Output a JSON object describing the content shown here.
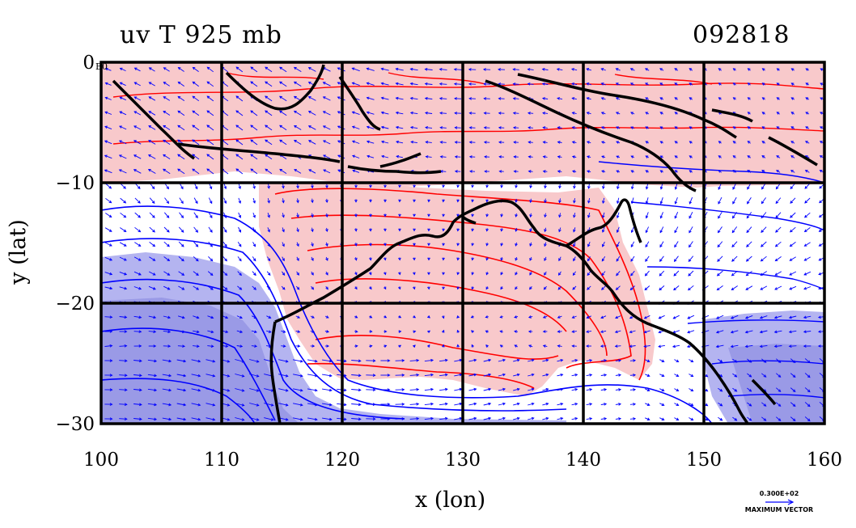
{
  "chart_data": {
    "type": "contour",
    "title": "uv  T  925  mb",
    "date": "092818",
    "xlabel": "x (lon)",
    "ylabel": "y (lat)",
    "xlim": [
      100,
      160
    ],
    "ylim": [
      -30,
      0
    ],
    "xticks": [
      100,
      110,
      120,
      130,
      140,
      150,
      160
    ],
    "yticks": [
      0,
      -10,
      -20,
      -30
    ],
    "xtick_labels": [
      "100",
      "110",
      "120",
      "130",
      "140",
      "150",
      "160"
    ],
    "ytick_labels": [
      "0",
      "−10",
      "−20",
      "−30"
    ],
    "grid": true,
    "fill_colors": {
      "warm": "#f8c9cb",
      "neutral": "#ffffff",
      "cool": "#b4b4f0",
      "cold": "#9a9ae6"
    },
    "contour_colors": {
      "warm": "#ff0000",
      "cool": "#0000ff",
      "coast": "#000000"
    },
    "vector_color": "#0000ff",
    "reference_vector": {
      "value": "0.300E+02",
      "label": "MAXIMUM VECTOR"
    },
    "corner_label": "E0"
  }
}
